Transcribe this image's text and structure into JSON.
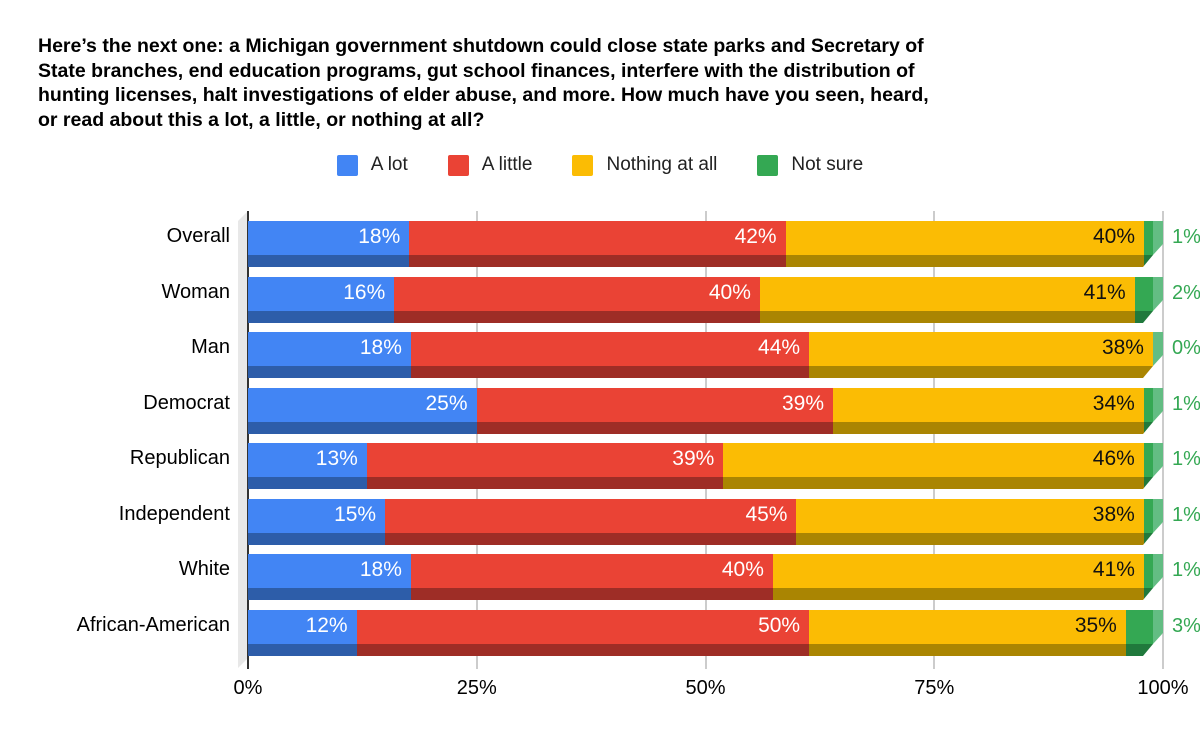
{
  "title_lines": [
    "Here’s the next one: a Michigan government shutdown could close state parks and Secretary of",
    "State branches, end education programs, gut school finances, interfere with the distribution of",
    "hunting licenses, halt investigations of elder abuse, and more. How much have you seen, heard,",
    "or read about this a lot, a little, or nothing at all?"
  ],
  "chart_data": {
    "type": "bar",
    "variant": "3d-horizontal-100%-stacked",
    "grid": true,
    "legend_position": "top",
    "categories": [
      "Overall",
      "Woman",
      "Man",
      "Democrat",
      "Republican",
      "Independent",
      "White",
      "African-American"
    ],
    "series": [
      {
        "name": "A lot",
        "color": "#4285f4",
        "color_dark": "#2d5da9",
        "label_color": "#ffffff",
        "values": [
          18,
          16,
          18,
          25,
          13,
          15,
          18,
          12
        ]
      },
      {
        "name": "A little",
        "color": "#ea4335",
        "color_dark": "#9e2d26",
        "label_color": "#ffffff",
        "values": [
          42,
          40,
          44,
          39,
          39,
          45,
          40,
          50
        ]
      },
      {
        "name": "Nothing at all",
        "color": "#fbbc04",
        "color_dark": "#aa8502",
        "label_color": "#111111",
        "values": [
          40,
          41,
          38,
          34,
          46,
          38,
          41,
          35
        ]
      },
      {
        "name": "Not sure",
        "color": "#34a853",
        "color_dark": "#20793c",
        "color_light": "#63bd83",
        "label_color": "#34a853",
        "values": [
          1,
          2,
          0,
          1,
          1,
          1,
          1,
          3
        ]
      }
    ],
    "value_suffix": "%",
    "x_axis": {
      "ticks": [
        "0%",
        "25%",
        "50%",
        "75%",
        "100%"
      ],
      "range": [
        0,
        100
      ]
    },
    "axis_color": "#333333",
    "grid_color": "#cccccc"
  }
}
